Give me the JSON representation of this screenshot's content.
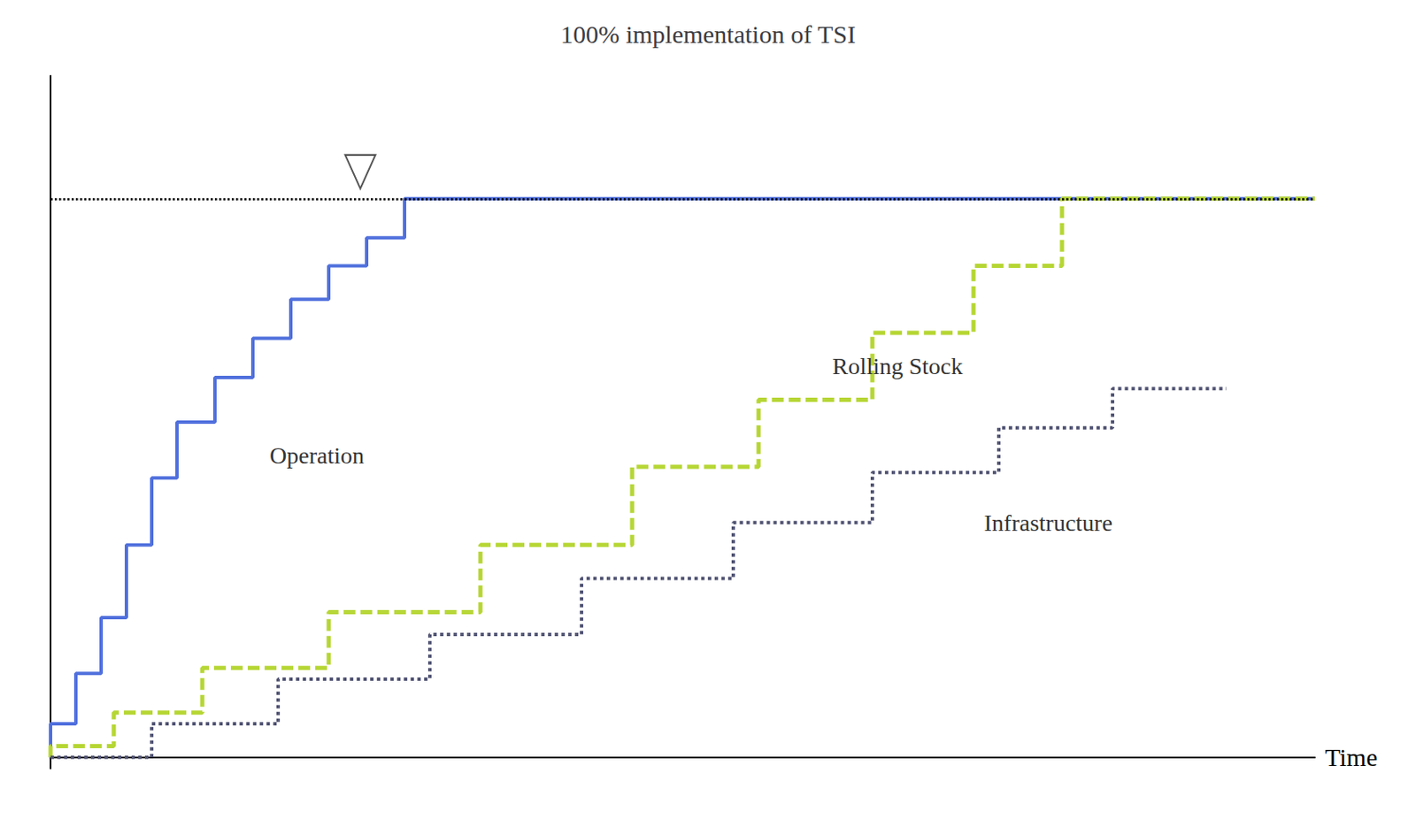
{
  "chart_data": {
    "type": "line",
    "title": "100% implementation of TSI",
    "xlabel": "Time",
    "xlim": [
      0,
      1.0
    ],
    "ylim": [
      -0.02,
      1.22
    ],
    "tick_labels": false,
    "grid": false,
    "series": [
      {
        "name": "Operation",
        "line_style": "solid",
        "label_at": [
          0.17,
          0.54
        ],
        "x": [
          0,
          0,
          0.02,
          0.02,
          0.04,
          0.04,
          0.06,
          0.06,
          0.08,
          0.08,
          0.1,
          0.1,
          0.13,
          0.13,
          0.16,
          0.16,
          0.19,
          0.19,
          0.22,
          0.22,
          0.25,
          0.25,
          0.28,
          0.28,
          1.0
        ],
        "values": [
          0,
          0.06,
          0.06,
          0.15,
          0.15,
          0.25,
          0.25,
          0.38,
          0.38,
          0.5,
          0.5,
          0.6,
          0.6,
          0.68,
          0.68,
          0.75,
          0.75,
          0.82,
          0.82,
          0.88,
          0.88,
          0.93,
          0.93,
          1.0,
          1.0
        ]
      },
      {
        "name": "Rolling Stock",
        "line_style": "dashed",
        "label_at": [
          0.615,
          0.7
        ],
        "x": [
          0,
          0,
          0.05,
          0.05,
          0.12,
          0.12,
          0.22,
          0.22,
          0.34,
          0.34,
          0.46,
          0.46,
          0.56,
          0.56,
          0.65,
          0.65,
          0.73,
          0.73,
          0.8,
          0.8,
          1.0
        ],
        "values": [
          0,
          0.02,
          0.02,
          0.08,
          0.08,
          0.16,
          0.16,
          0.26,
          0.26,
          0.38,
          0.38,
          0.52,
          0.52,
          0.64,
          0.64,
          0.76,
          0.76,
          0.88,
          0.88,
          1.0,
          1.0
        ]
      },
      {
        "name": "Infrastructure",
        "line_style": "dotted",
        "label_at": [
          0.735,
          0.42
        ],
        "x": [
          0,
          0.08,
          0.08,
          0.18,
          0.18,
          0.3,
          0.3,
          0.42,
          0.42,
          0.54,
          0.54,
          0.65,
          0.65,
          0.75,
          0.75,
          0.84,
          0.84,
          0.93
        ],
        "values": [
          0,
          0,
          0.06,
          0.06,
          0.14,
          0.14,
          0.22,
          0.22,
          0.32,
          0.32,
          0.42,
          0.42,
          0.51,
          0.51,
          0.59,
          0.59,
          0.66,
          0.66
        ]
      }
    ],
    "reference_line": {
      "y": 1.0,
      "line_style": "dotted",
      "marker_x": 0.245
    }
  }
}
